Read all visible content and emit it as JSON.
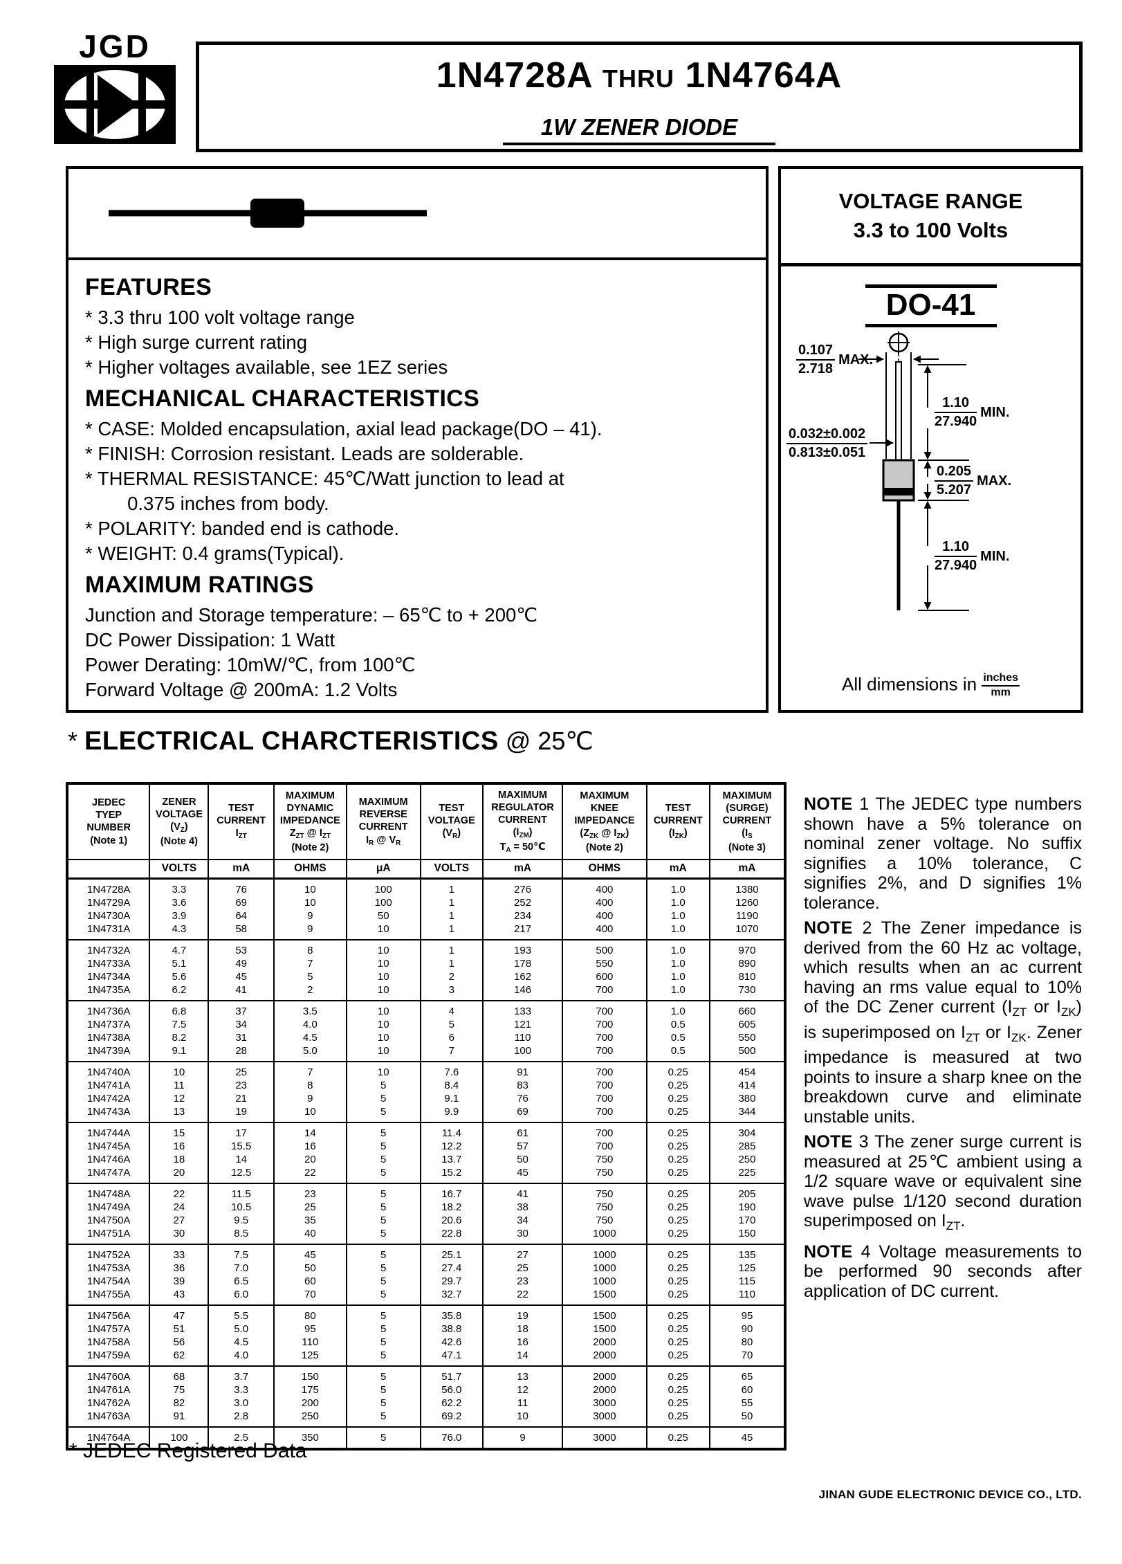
{
  "logo": {
    "text": "JGD"
  },
  "header": {
    "title_left": "1N4728A",
    "title_thru": "THRU",
    "title_right": "1N4764A",
    "subtitle": "1W ZENER DIODE"
  },
  "voltage_range": {
    "line1": "VOLTAGE RANGE",
    "line2": "3.3 to 100 Volts"
  },
  "features": {
    "heading": "FEATURES",
    "items": [
      "* 3.3 thru 100 volt voltage range",
      "* High surge current rating",
      "* Higher voltages available, see 1EZ series"
    ]
  },
  "mechanical": {
    "heading": "MECHANICAL CHARACTERISTICS",
    "items": [
      "* CASE: Molded encapsulation, axial lead package(DO – 41).",
      "* FINISH: Corrosion resistant. Leads are solderable.",
      "* THERMAL RESISTANCE: 45℃/Watt junction to lead at",
      "        0.375 inches from body.",
      "* POLARITY: banded end is cathode.",
      "* WEIGHT: 0.4 grams(Typical)."
    ]
  },
  "maximum_ratings": {
    "heading": "MAXIMUM RATINGS",
    "items": [
      "Junction and Storage temperature: – 65℃ to + 200℃",
      "DC Power Dissipation: 1 Watt",
      "Power Derating: 10mW/℃, from 100℃",
      "Forward Voltage @ 200mA: 1.2 Volts"
    ]
  },
  "package": {
    "name": "DO-41",
    "dims": {
      "body_dia": {
        "num": "0.107",
        "den": "2.718",
        "suffix": "MAX."
      },
      "lead_dia": {
        "num": "0.032±0.002",
        "den": "0.813±0.051",
        "suffix": ""
      },
      "lead_top": {
        "num": "1.10",
        "den": "27.940",
        "suffix": "MIN."
      },
      "body_len": {
        "num": "0.205",
        "den": "5.207",
        "suffix": "MAX."
      },
      "lead_bot": {
        "num": "1.10",
        "den": "27.940",
        "suffix": "MIN."
      }
    },
    "dims_note": {
      "prefix": "All dimensions in",
      "num": "inches",
      "den": "mm"
    }
  },
  "electrical": {
    "mark": "*",
    "heading": "ELECTRICAL CHARCTERISTICS",
    "suffix": "@ 25℃"
  },
  "table": {
    "col_widths_pct": [
      11.5,
      8.2,
      9.1,
      10.1,
      10.3,
      8.7,
      11.1,
      11.7,
      8.8,
      10.5
    ],
    "columns": [
      {
        "lines": [
          "JEDEC",
          "TYEP",
          "NUMBER",
          "(Note 1)"
        ]
      },
      {
        "lines": [
          "ZENER",
          "VOLTAGE",
          "(V~Z~)",
          "(Note 4)"
        ]
      },
      {
        "lines": [
          "TEST",
          "CURRENT",
          "I~ZT~"
        ]
      },
      {
        "lines": [
          "MAXIMUM",
          "DYNAMIC",
          "IMPEDANCE",
          "Z~ZT~ @ I~ZT~",
          "(Note 2)"
        ]
      },
      {
        "lines": [
          "MAXIMUM",
          "REVERSE",
          "CURRENT",
          "I~R~ @ V~R~"
        ]
      },
      {
        "lines": [
          "TEST",
          "VOLTAGE",
          "(V~R~)"
        ]
      },
      {
        "lines": [
          "MAXIMUM",
          "REGULATOR",
          "CURRENT",
          "(I~ZM~)",
          "T~A~ = 50℃"
        ]
      },
      {
        "lines": [
          "MAXIMUM",
          "KNEE",
          "IMPEDANCE",
          "(Z~ZK~ @ I~ZK~)",
          "(Note 2)"
        ]
      },
      {
        "lines": [
          "TEST",
          "CURRENT",
          "(I~ZK~)"
        ]
      },
      {
        "lines": [
          "MAXIMUM",
          "(SURGE)",
          "CURRENT",
          "(I~S~",
          "(Note 3)"
        ]
      }
    ],
    "units": [
      "",
      "VOLTS",
      "mA",
      "OHMS",
      "μA",
      "VOLTS",
      "mA",
      "OHMS",
      "mA",
      "mA"
    ],
    "groups": [
      {
        "rows": [
          [
            "1N4728A",
            "3.3",
            "76",
            "10",
            "100",
            "1",
            "276",
            "400",
            "1.0",
            "1380"
          ],
          [
            "1N4729A",
            "3.6",
            "69",
            "10",
            "100",
            "1",
            "252",
            "400",
            "1.0",
            "1260"
          ],
          [
            "1N4730A",
            "3.9",
            "64",
            "9",
            "50",
            "1",
            "234",
            "400",
            "1.0",
            "1190"
          ],
          [
            "1N4731A",
            "4.3",
            "58",
            "9",
            "10",
            "1",
            "217",
            "400",
            "1.0",
            "1070"
          ]
        ]
      },
      {
        "rows": [
          [
            "1N4732A",
            "4.7",
            "53",
            "8",
            "10",
            "1",
            "193",
            "500",
            "1.0",
            "970"
          ],
          [
            "1N4733A",
            "5.1",
            "49",
            "7",
            "10",
            "1",
            "178",
            "550",
            "1.0",
            "890"
          ],
          [
            "1N4734A",
            "5.6",
            "45",
            "5",
            "10",
            "2",
            "162",
            "600",
            "1.0",
            "810"
          ],
          [
            "1N4735A",
            "6.2",
            "41",
            "2",
            "10",
            "3",
            "146",
            "700",
            "1.0",
            "730"
          ]
        ]
      },
      {
        "rows": [
          [
            "1N4736A",
            "6.8",
            "37",
            "3.5",
            "10",
            "4",
            "133",
            "700",
            "1.0",
            "660"
          ],
          [
            "1N4737A",
            "7.5",
            "34",
            "4.0",
            "10",
            "5",
            "121",
            "700",
            "0.5",
            "605"
          ],
          [
            "1N4738A",
            "8.2",
            "31",
            "4.5",
            "10",
            "6",
            "110",
            "700",
            "0.5",
            "550"
          ],
          [
            "1N4739A",
            "9.1",
            "28",
            "5.0",
            "10",
            "7",
            "100",
            "700",
            "0.5",
            "500"
          ]
        ]
      },
      {
        "rows": [
          [
            "1N4740A",
            "10",
            "25",
            "7",
            "10",
            "7.6",
            "91",
            "700",
            "0.25",
            "454"
          ],
          [
            "1N4741A",
            "11",
            "23",
            "8",
            "5",
            "8.4",
            "83",
            "700",
            "0.25",
            "414"
          ],
          [
            "1N4742A",
            "12",
            "21",
            "9",
            "5",
            "9.1",
            "76",
            "700",
            "0.25",
            "380"
          ],
          [
            "1N4743A",
            "13",
            "19",
            "10",
            "5",
            "9.9",
            "69",
            "700",
            "0.25",
            "344"
          ]
        ]
      },
      {
        "rows": [
          [
            "1N4744A",
            "15",
            "17",
            "14",
            "5",
            "11.4",
            "61",
            "700",
            "0.25",
            "304"
          ],
          [
            "1N4745A",
            "16",
            "15.5",
            "16",
            "5",
            "12.2",
            "57",
            "700",
            "0.25",
            "285"
          ],
          [
            "1N4746A",
            "18",
            "14",
            "20",
            "5",
            "13.7",
            "50",
            "750",
            "0.25",
            "250"
          ],
          [
            "1N4747A",
            "20",
            "12.5",
            "22",
            "5",
            "15.2",
            "45",
            "750",
            "0.25",
            "225"
          ]
        ]
      },
      {
        "rows": [
          [
            "1N4748A",
            "22",
            "11.5",
            "23",
            "5",
            "16.7",
            "41",
            "750",
            "0.25",
            "205"
          ],
          [
            "1N4749A",
            "24",
            "10.5",
            "25",
            "5",
            "18.2",
            "38",
            "750",
            "0.25",
            "190"
          ],
          [
            "1N4750A",
            "27",
            "9.5",
            "35",
            "5",
            "20.6",
            "34",
            "750",
            "0.25",
            "170"
          ],
          [
            "1N4751A",
            "30",
            "8.5",
            "40",
            "5",
            "22.8",
            "30",
            "1000",
            "0.25",
            "150"
          ]
        ]
      },
      {
        "rows": [
          [
            "1N4752A",
            "33",
            "7.5",
            "45",
            "5",
            "25.1",
            "27",
            "1000",
            "0.25",
            "135"
          ],
          [
            "1N4753A",
            "36",
            "7.0",
            "50",
            "5",
            "27.4",
            "25",
            "1000",
            "0.25",
            "125"
          ],
          [
            "1N4754A",
            "39",
            "6.5",
            "60",
            "5",
            "29.7",
            "23",
            "1000",
            "0.25",
            "115"
          ],
          [
            "1N4755A",
            "43",
            "6.0",
            "70",
            "5",
            "32.7",
            "22",
            "1500",
            "0.25",
            "110"
          ]
        ]
      },
      {
        "rows": [
          [
            "1N4756A",
            "47",
            "5.5",
            "80",
            "5",
            "35.8",
            "19",
            "1500",
            "0.25",
            "95"
          ],
          [
            "1N4757A",
            "51",
            "5.0",
            "95",
            "5",
            "38.8",
            "18",
            "1500",
            "0.25",
            "90"
          ],
          [
            "1N4758A",
            "56",
            "4.5",
            "110",
            "5",
            "42.6",
            "16",
            "2000",
            "0.25",
            "80"
          ],
          [
            "1N4759A",
            "62",
            "4.0",
            "125",
            "5",
            "47.1",
            "14",
            "2000",
            "0.25",
            "70"
          ]
        ]
      },
      {
        "rows": [
          [
            "1N4760A",
            "68",
            "3.7",
            "150",
            "5",
            "51.7",
            "13",
            "2000",
            "0.25",
            "65"
          ],
          [
            "1N4761A",
            "75",
            "3.3",
            "175",
            "5",
            "56.0",
            "12",
            "2000",
            "0.25",
            "60"
          ],
          [
            "1N4762A",
            "82",
            "3.0",
            "200",
            "5",
            "62.2",
            "11",
            "3000",
            "0.25",
            "55"
          ],
          [
            "1N4763A",
            "91",
            "2.8",
            "250",
            "5",
            "69.2",
            "10",
            "3000",
            "0.25",
            "50"
          ]
        ]
      },
      {
        "rows": [
          [
            "1N4764A",
            "100",
            "2.5",
            "350",
            "5",
            "76.0",
            "9",
            "3000",
            "0.25",
            "45"
          ]
        ]
      }
    ]
  },
  "notes": [
    {
      "label": "NOTE",
      "number": "1",
      "text": "The JEDEC type numbers shown have a 5% tolerance on nominal zener voltage. No suffix signifies a 10% tolerance, C signifies 2%, and D signifies 1% tolerance."
    },
    {
      "label": "NOTE",
      "number": "2",
      "text": "The Zener impedance is derived from the 60 Hz ac voltage, which results when an ac current having an rms value equal to 10% of the DC Zener current (I~ZT~ or I~ZK~) is superimposed on I~ZT~ or I~ZK~. Zener impedance is measured at two points to insure a sharp knee on the breakdown curve and eliminate unstable units."
    },
    {
      "label": "NOTE",
      "number": "3",
      "text": "The zener surge current is measured at 25℃ ambient using a 1/2 square wave or equivalent sine wave pulse 1/120 second duration superimposed on I~ZT~."
    },
    {
      "label": "NOTE",
      "number": "4",
      "text": "Voltage measurements to be performed 90 seconds after application of DC current."
    }
  ],
  "footer": {
    "jedec": "* JEDEC Registered Data",
    "company": "JINAN GUDE ELECTRONIC DEVICE CO., LTD."
  }
}
